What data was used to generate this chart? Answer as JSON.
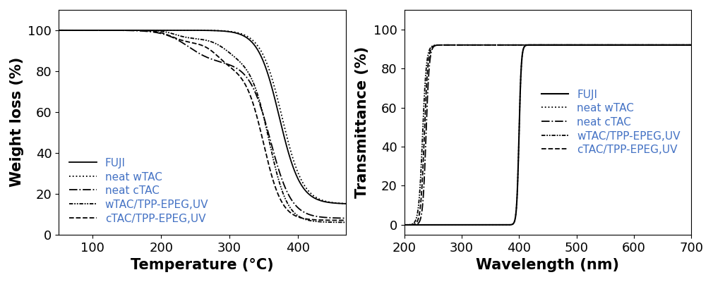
{
  "plot1": {
    "xlabel": "Temperature (°C)",
    "ylabel": "Weight loss (%)",
    "xlim": [
      50,
      470
    ],
    "ylim": [
      0,
      110
    ],
    "yticks": [
      0,
      20,
      40,
      60,
      80,
      100
    ],
    "xticks": [
      100,
      200,
      300,
      400
    ],
    "legend_labels": [
      "FUJI",
      "neat wTAC",
      "neat cTAC",
      "wTAC/TPP-EPEG,UV",
      "cTAC/TPP-EPEG,UV"
    ]
  },
  "plot2": {
    "xlabel": "Wavelength (nm)",
    "ylabel": "Transmittance (%)",
    "xlim": [
      200,
      700
    ],
    "ylim": [
      -5,
      110
    ],
    "yticks": [
      0,
      20,
      40,
      60,
      80,
      100
    ],
    "xticks": [
      200,
      300,
      400,
      500,
      600,
      700
    ],
    "legend_labels": [
      "FUJI",
      "neat wTAC",
      "neat cTAC",
      "wTAC/TPP-EPEG,UV",
      "cTAC/TPP-EPEG,UV"
    ]
  },
  "legend_text_color": "#4472C4",
  "font_size": 11,
  "axis_font_size": 13,
  "label_font_size": 15,
  "linewidth": 1.3
}
